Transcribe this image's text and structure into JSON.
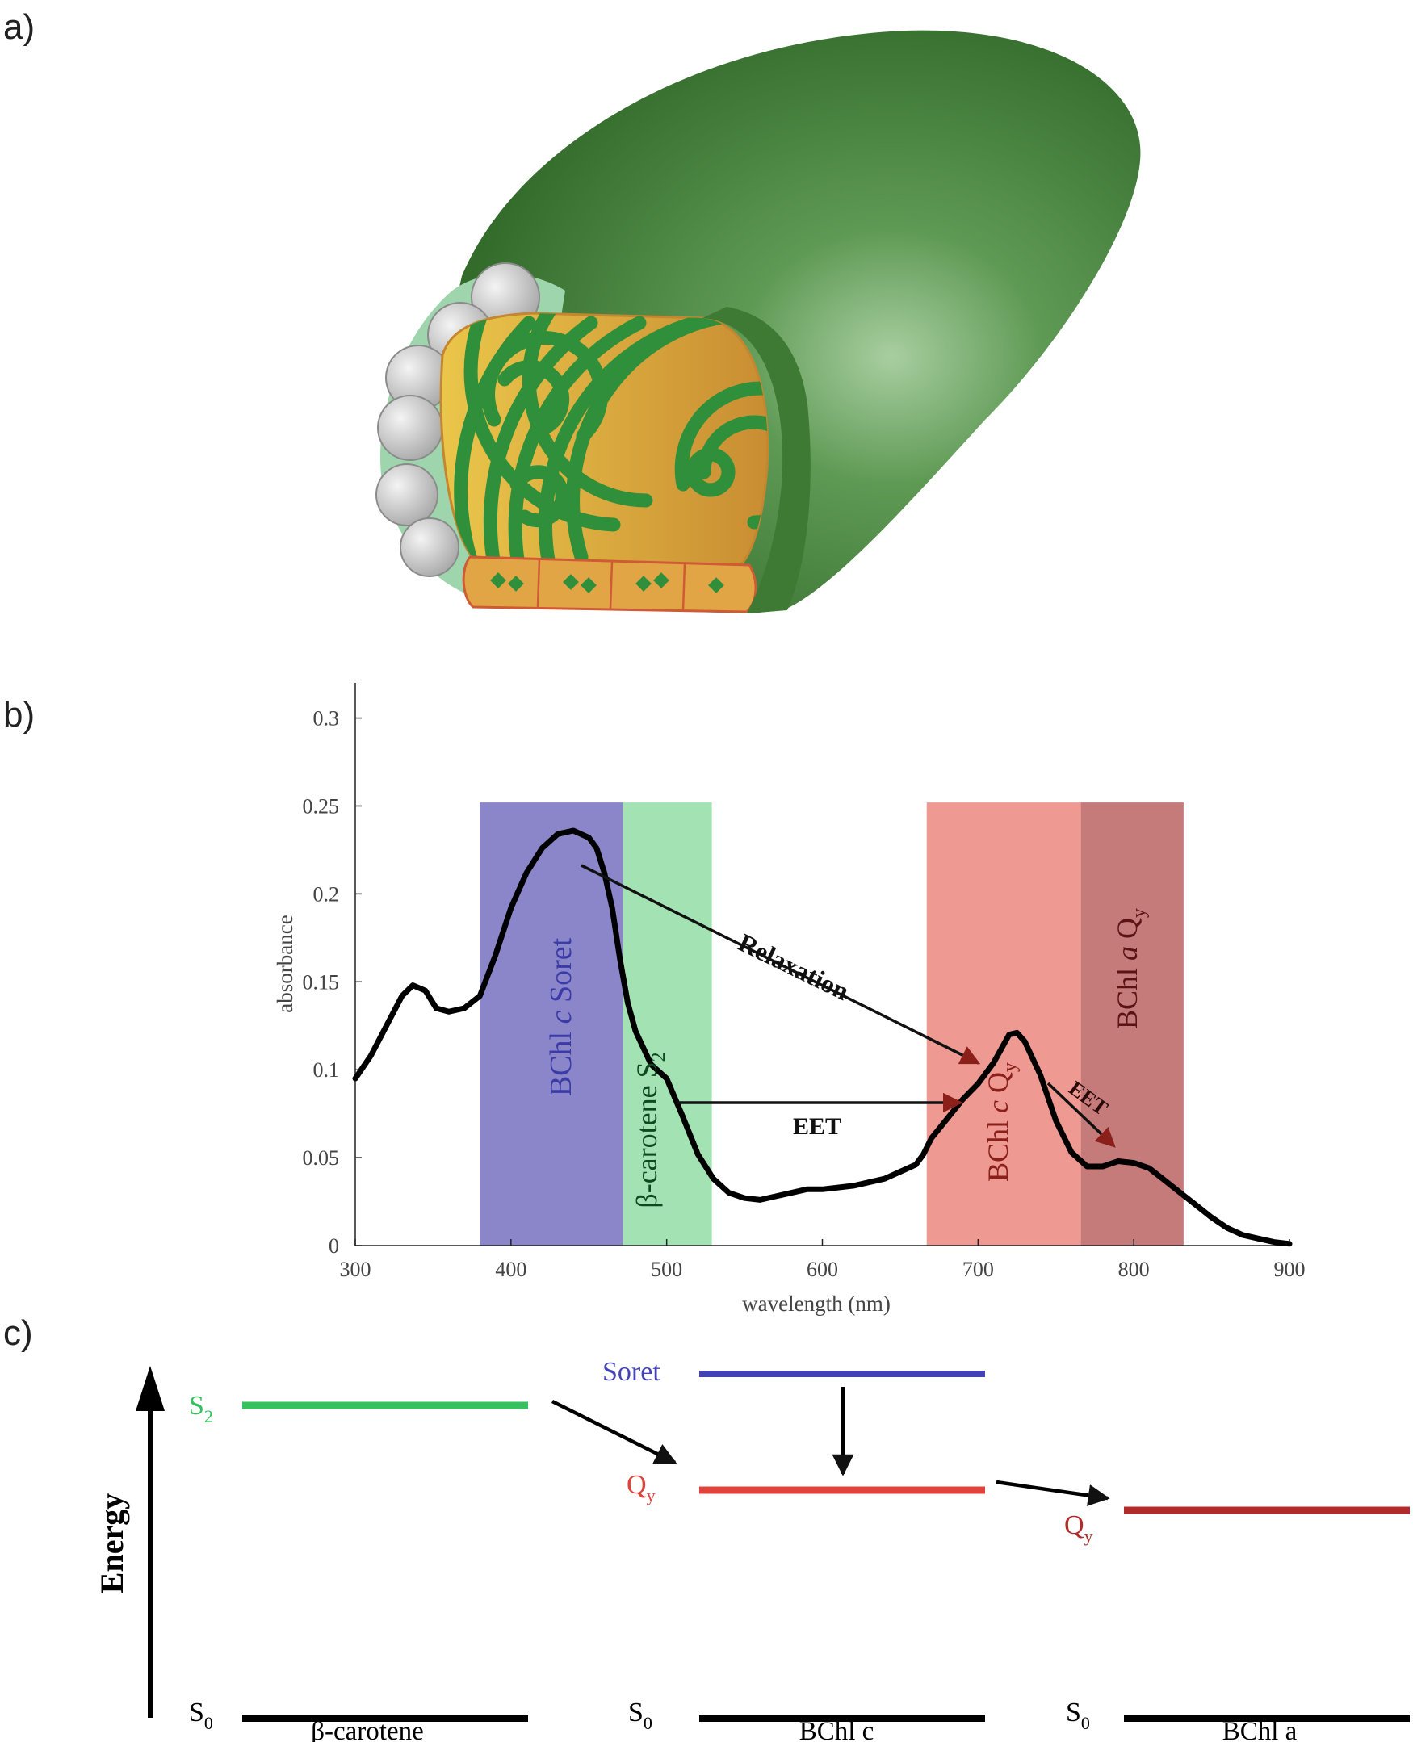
{
  "panels": {
    "a": {
      "label": "a)"
    },
    "b": {
      "label": "b)"
    },
    "c": {
      "label": "c)"
    }
  },
  "colors": {
    "chlorosome_green": "#3d7f33",
    "lamella_gold": "#d9a037",
    "lamella_green": "#2f8f3a",
    "soret_band": "#8a86c9",
    "carotene_band": "#a3e2b2",
    "bchl_c_qy_band": "#ee9a93",
    "bchl_a_qy_band": "#c47b79",
    "soret_level": "#4343b5",
    "s2_level": "#33c25e",
    "qy_c_level": "#e0423c",
    "qy_a_level": "#b22a2a"
  },
  "chart_data": {
    "type": "line",
    "xlabel": "wavelength (nm)",
    "ylabel": "absorbance",
    "xlim": [
      300,
      900
    ],
    "ylim": [
      0,
      0.32
    ],
    "xticks": [
      300,
      400,
      500,
      600,
      700,
      800,
      900
    ],
    "yticks": [
      0,
      0.05,
      0.1,
      0.15,
      0.2,
      0.25,
      0.3
    ],
    "ytick_labels": [
      "0",
      "0.05",
      "0.1",
      "0.15",
      "0.2",
      "0.25",
      "0.3"
    ],
    "bands": [
      {
        "label": "BChl c Soret",
        "x0": 380,
        "x1": 472,
        "y1": 0.252
      },
      {
        "label": "β-carotene S2",
        "x0": 472,
        "x1": 529,
        "y1": 0.252
      },
      {
        "label": "BChl c Qy",
        "x0": 667,
        "x1": 766,
        "y1": 0.252
      },
      {
        "label": "BChl a Qy",
        "x0": 766,
        "x1": 832,
        "y1": 0.252
      }
    ],
    "series": [
      {
        "x": [
          300,
          310,
          320,
          330,
          337,
          345,
          352,
          360,
          370,
          380,
          390,
          400,
          410,
          420,
          430,
          440,
          450,
          455,
          460,
          465,
          470,
          475,
          480,
          490,
          500,
          510,
          520,
          530,
          540,
          550,
          560,
          570,
          580,
          590,
          600,
          610,
          620,
          630,
          640,
          650,
          660,
          665,
          670,
          680,
          690,
          700,
          710,
          715,
          720,
          725,
          730,
          740,
          750,
          760,
          770,
          780,
          790,
          800,
          810,
          820,
          830,
          840,
          850,
          860,
          870,
          880,
          890,
          900
        ],
        "y": [
          0.095,
          0.108,
          0.125,
          0.142,
          0.148,
          0.145,
          0.135,
          0.133,
          0.135,
          0.142,
          0.165,
          0.192,
          0.212,
          0.226,
          0.234,
          0.236,
          0.232,
          0.226,
          0.212,
          0.192,
          0.163,
          0.138,
          0.122,
          0.103,
          0.095,
          0.074,
          0.052,
          0.038,
          0.03,
          0.027,
          0.026,
          0.028,
          0.03,
          0.032,
          0.032,
          0.033,
          0.034,
          0.036,
          0.038,
          0.042,
          0.046,
          0.052,
          0.061,
          0.072,
          0.083,
          0.092,
          0.104,
          0.112,
          0.12,
          0.121,
          0.116,
          0.097,
          0.071,
          0.053,
          0.045,
          0.045,
          0.048,
          0.047,
          0.044,
          0.037,
          0.03,
          0.023,
          0.016,
          0.01,
          0.006,
          0.004,
          0.002,
          0.001
        ]
      }
    ],
    "annotations": [
      {
        "text": "Relaxation"
      },
      {
        "text": "EET"
      },
      {
        "text": "EET"
      }
    ]
  },
  "energy_diagram": {
    "axis_label": "Energy",
    "ground_label": "S",
    "ground_sub": "0",
    "s2_main": "S",
    "s2_sub": "2",
    "soret": "Soret",
    "qy_main": "Q",
    "qy_sub": "y",
    "molecules": [
      "β-carotene",
      "BChl c",
      "BChl a"
    ]
  }
}
